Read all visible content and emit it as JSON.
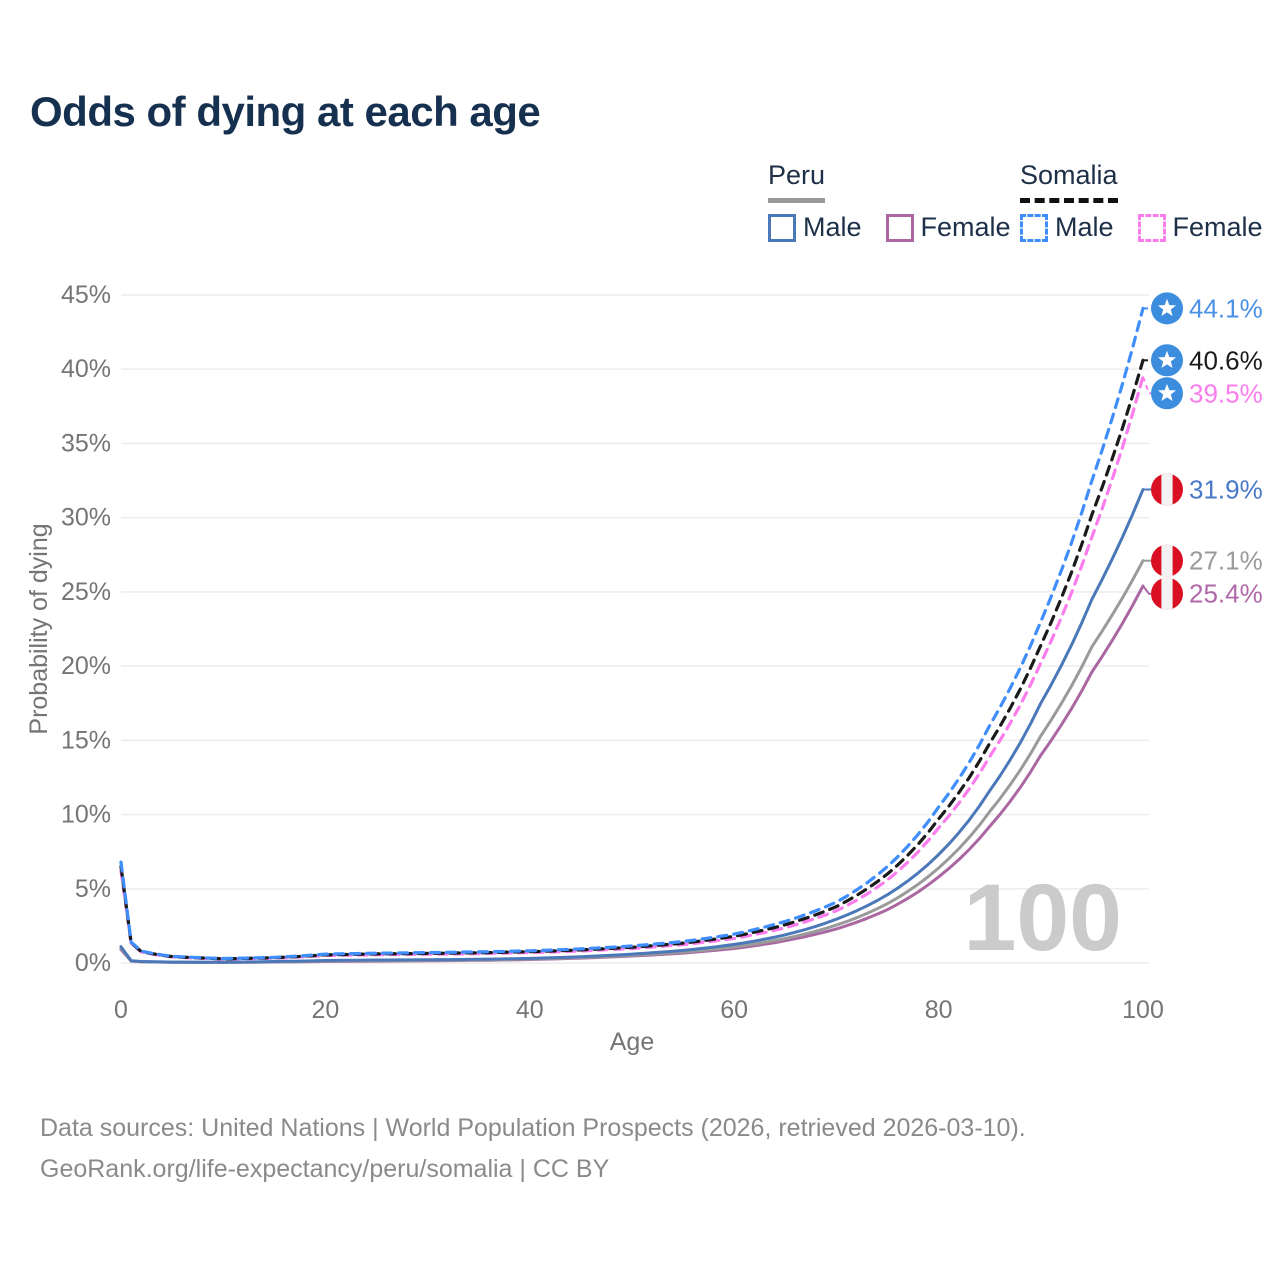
{
  "title": "Odds of dying at each age",
  "legend": {
    "peru": {
      "label": "Peru",
      "male_label": "Male",
      "female_label": "Female",
      "underline_color": "#999999",
      "male_color": "#4a78b8",
      "female_color": "#aa67a2"
    },
    "somalia": {
      "label": "Somalia",
      "male_label": "Male",
      "female_label": "Female",
      "underline_color": "#111111",
      "male_color": "#3f8efc",
      "female_color": "#fb7ced"
    }
  },
  "footer": {
    "line1": "Data sources: United Nations | World Population Prospects (2026, retrieved 2026-03-10).",
    "line2": "GeoRank.org/life-expectancy/peru/somalia | CC BY"
  },
  "chart_data": {
    "type": "line",
    "title": "Odds of dying at each age",
    "xlabel": "Age",
    "ylabel": "Probability of dying",
    "xlim": [
      0,
      100
    ],
    "ylim": [
      0,
      45
    ],
    "xticks": [
      0,
      20,
      40,
      60,
      80,
      100
    ],
    "yticks": [
      0,
      5,
      10,
      15,
      20,
      25,
      30,
      35,
      40,
      45
    ],
    "ytick_suffix": "%",
    "grid": true,
    "legend_position": "top-right",
    "watermark": "100",
    "colors": {
      "grid": "#ebebeb",
      "tick": "#757575",
      "watermark": "#cbcbcb",
      "somalia_flag_bg": "#3d8ddf",
      "somalia_flag_star": "#ffffff",
      "peru_flag_red": "#d91023",
      "peru_flag_white": "#f2f2f2"
    },
    "x": [
      0,
      1,
      2,
      5,
      10,
      15,
      20,
      25,
      30,
      35,
      40,
      45,
      50,
      55,
      60,
      65,
      70,
      75,
      80,
      85,
      90,
      95,
      100
    ],
    "series": [
      {
        "id": "somalia-male",
        "name": "Somalia Male",
        "country": "Somalia",
        "sex": "Male",
        "flag": "somalia",
        "style": "dashed",
        "color": "#3f8efc",
        "label_color": "#4a90e8",
        "end_label": "44.1%",
        "end_value": 44.1,
        "values": [
          6.8,
          1.4,
          0.8,
          0.45,
          0.3,
          0.38,
          0.6,
          0.66,
          0.7,
          0.75,
          0.82,
          0.95,
          1.15,
          1.45,
          1.95,
          2.8,
          4.1,
          6.5,
          10.5,
          16.0,
          23.0,
          32.5,
          44.1
        ]
      },
      {
        "id": "somalia-both",
        "name": "Somalia Both sexes",
        "country": "Somalia",
        "sex": "Both",
        "flag": "somalia",
        "style": "dashed",
        "color": "#1a1a1a",
        "label_color": "#1a1a1a",
        "end_label": "40.6%",
        "end_value": 40.6,
        "values": [
          6.5,
          1.35,
          0.77,
          0.43,
          0.285,
          0.355,
          0.55,
          0.61,
          0.645,
          0.69,
          0.76,
          0.88,
          1.06,
          1.34,
          1.8,
          2.58,
          3.8,
          6.0,
          9.7,
          14.8,
          21.4,
          30.2,
          40.6
        ]
      },
      {
        "id": "somalia-female",
        "name": "Somalia Female",
        "country": "Somalia",
        "sex": "Female",
        "flag": "somalia",
        "style": "dashed",
        "color": "#fb7ced",
        "label_color": "#fb7ced",
        "end_label": "39.5%",
        "end_value": 39.5,
        "values": [
          6.2,
          1.3,
          0.74,
          0.41,
          0.27,
          0.33,
          0.5,
          0.56,
          0.59,
          0.63,
          0.7,
          0.81,
          0.98,
          1.24,
          1.66,
          2.38,
          3.52,
          5.6,
          9.1,
          13.9,
          20.2,
          28.7,
          39.5
        ]
      },
      {
        "id": "peru-male",
        "name": "Peru Male",
        "country": "Peru",
        "sex": "Male",
        "flag": "peru",
        "style": "solid",
        "color": "#4a78b8",
        "label_color": "#4a78c8",
        "end_label": "31.9%",
        "end_value": 31.9,
        "values": [
          1.1,
          0.15,
          0.1,
          0.06,
          0.05,
          0.1,
          0.17,
          0.2,
          0.22,
          0.25,
          0.31,
          0.42,
          0.6,
          0.85,
          1.25,
          1.9,
          2.95,
          4.6,
          7.3,
          11.6,
          17.5,
          24.5,
          31.9
        ]
      },
      {
        "id": "peru-both",
        "name": "Peru Both sexes",
        "country": "Peru",
        "sex": "Both",
        "flag": "peru",
        "style": "solid",
        "color": "#9a9a9a",
        "label_color": "#9a9a9a",
        "end_label": "27.1%",
        "end_value": 27.1,
        "values": [
          1.0,
          0.14,
          0.09,
          0.055,
          0.045,
          0.08,
          0.13,
          0.16,
          0.18,
          0.21,
          0.27,
          0.37,
          0.52,
          0.74,
          1.08,
          1.65,
          2.55,
          4.0,
          6.4,
          10.2,
          15.3,
          21.3,
          27.1
        ]
      },
      {
        "id": "peru-female",
        "name": "Peru Female",
        "country": "Peru",
        "sex": "Female",
        "flag": "peru",
        "style": "solid",
        "color": "#aa67a2",
        "label_color": "#b068a8",
        "end_label": "25.4%",
        "end_value": 25.4,
        "values": [
          0.9,
          0.13,
          0.085,
          0.05,
          0.04,
          0.065,
          0.1,
          0.125,
          0.15,
          0.18,
          0.235,
          0.33,
          0.47,
          0.67,
          0.98,
          1.5,
          2.3,
          3.6,
          5.8,
          9.2,
          14.0,
          19.6,
          25.4
        ]
      }
    ]
  }
}
